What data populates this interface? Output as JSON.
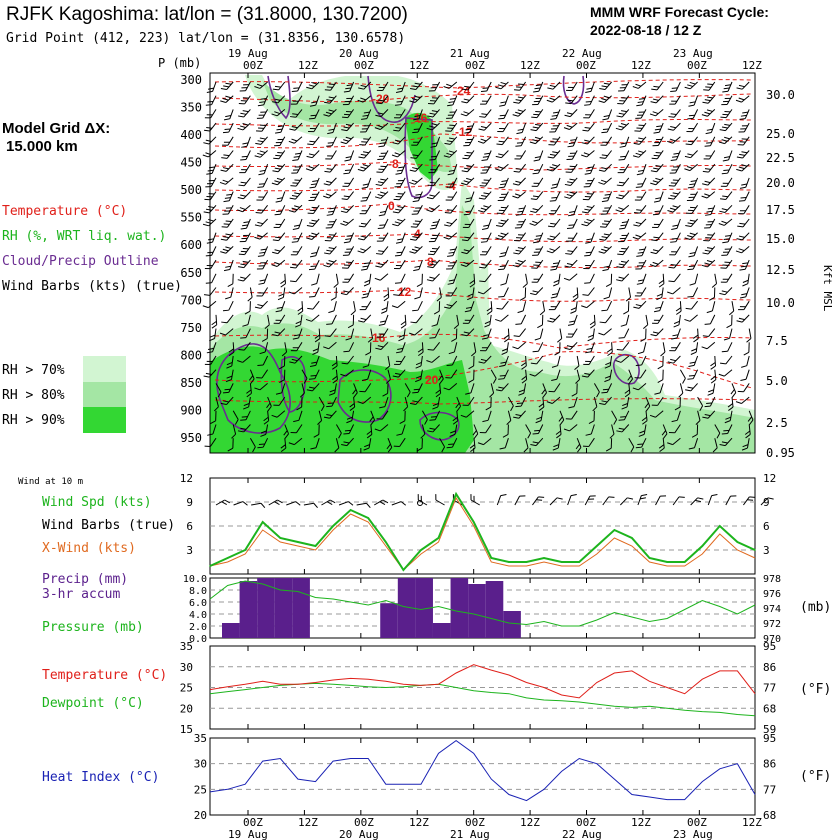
{
  "header": {
    "title": "RJFK Kagoshima:  lat/lon = (31.8000, 130.7200)",
    "subtitle": "Grid Point (412, 223) lat/lon = (31.8356, 130.6578)",
    "cycle_label": "MMM WRF Forecast Cycle:",
    "cycle_value": "2022-08-18 / 12  Z"
  },
  "left_panel": {
    "grid_label": "Model Grid ΔX:",
    "grid_value": "15.000 km",
    "legend": [
      {
        "text": "Temperature (°C)",
        "color": "#e0201a"
      },
      {
        "text": "RH (%, WRT liq. wat.)",
        "color": "#1db41d"
      },
      {
        "text": "Cloud/Precip Outline",
        "color": "#6a2c91"
      },
      {
        "text": "Wind Barbs (kts) (true)",
        "color": "#000000"
      }
    ],
    "rh_legend": [
      {
        "text": "RH > 70%",
        "color": "#d2f5d2"
      },
      {
        "text": "RH > 80%",
        "color": "#a4e6a4"
      },
      {
        "text": "RH > 90%",
        "color": "#33d733"
      }
    ]
  },
  "time_axis": {
    "day_labels": [
      "19 Aug",
      "20 Aug",
      "21 Aug",
      "22 Aug",
      "23 Aug"
    ],
    "hour_labels": [
      "00Z",
      "12Z",
      "00Z",
      "12Z",
      "00Z",
      "12Z",
      "00Z",
      "12Z",
      "00Z",
      "12Z"
    ]
  },
  "chart_data": [
    {
      "type": "heatmap",
      "name": "Vertical cross-section (time-height)",
      "ylabel": "P (mb)",
      "right_label": "Kft MSL",
      "pressure_levels": [
        300,
        350,
        400,
        450,
        500,
        550,
        600,
        650,
        700,
        750,
        800,
        850,
        900,
        950
      ],
      "height_labels": [
        "30.0",
        "25.0",
        "22.5",
        "20.0",
        "17.5",
        "15.0",
        "12.5",
        "10.0",
        "7.5",
        "5.0",
        "2.5",
        "0.95"
      ],
      "temperature_contour_labels": [
        "-24",
        "-20",
        "-16",
        "-12",
        "-8",
        "-4",
        "0",
        "4",
        "8",
        "12",
        "16",
        "20"
      ],
      "rh_classes": [
        "> 70%",
        "> 80%",
        "> 90%"
      ]
    },
    {
      "type": "line",
      "name": "Surface wind",
      "header_note": "Wind at 10 m",
      "series": [
        {
          "name": "Wind Spd (kts)",
          "color": "#1db41d",
          "values": [
            1,
            2,
            3,
            6.5,
            4.5,
            4,
            3.5,
            6,
            8,
            7,
            4,
            0.5,
            3,
            4.5,
            10,
            6.5,
            2,
            1.5,
            1.5,
            2,
            1.5,
            1.5,
            3.5,
            5.5,
            4.5,
            2,
            1.5,
            1.5,
            3.5,
            6,
            4,
            3
          ]
        },
        {
          "name": "X-Wind (kts)",
          "color": "#e06a20",
          "values": [
            1,
            1.5,
            2.5,
            5.5,
            4,
            3.5,
            3,
            5.5,
            7.5,
            6.5,
            3.5,
            0.5,
            2.5,
            4,
            9.5,
            6,
            1.5,
            1,
            1,
            1.5,
            1,
            1,
            2.5,
            4.5,
            3.5,
            1.5,
            1,
            1,
            2.5,
            5,
            3,
            2
          ]
        }
      ],
      "wind_barbs_label": "Wind Barbs (true)",
      "y_ticks": [
        "12",
        "9",
        "6",
        "3"
      ],
      "ylim": [
        0,
        12
      ]
    },
    {
      "type": "bar",
      "name": "Precipitation & pressure",
      "series": [
        {
          "name": "Precip (mm) 3-hr accum",
          "color": "#5a1f8c",
          "values": [
            2.5,
            9.5,
            10,
            10,
            10,
            0,
            0,
            0,
            0,
            5.8,
            10,
            10,
            2.5,
            10,
            9,
            9.5,
            4.5,
            0,
            0,
            0,
            0,
            0,
            0,
            0,
            0,
            0,
            0,
            0,
            0,
            0,
            0,
            0
          ]
        },
        {
          "name": "Pressure (mb)",
          "color": "#1db41d",
          "values": [
            975.2,
            977,
            977.6,
            977.2,
            976.4,
            976.2,
            975.4,
            975.2,
            974.8,
            974.4,
            975,
            974.2,
            973.8,
            974.2,
            973.6,
            973.2,
            972.6,
            972,
            971.8,
            972.2,
            971.6,
            971.6,
            972.4,
            973.4,
            972.8,
            972.2,
            972.6,
            973.8,
            975,
            974.2,
            973.2,
            974.4
          ]
        }
      ],
      "precip_ticks": [
        "10.0",
        "8.0",
        "6.0",
        "4.0",
        "2.0",
        "0.0"
      ],
      "pressure_ticks": [
        "978",
        "976",
        "974",
        "972",
        "970"
      ],
      "pressure_unit": "(mb)",
      "precip_ylim": [
        0,
        10
      ],
      "pressure_ylim": [
        970,
        978
      ]
    },
    {
      "type": "line",
      "name": "Temperature & dewpoint",
      "series": [
        {
          "name": "Temperature (°C)",
          "color": "#e0201a",
          "values": [
            24.5,
            25.2,
            25.8,
            26.5,
            25.8,
            25.8,
            26.2,
            26.8,
            27.2,
            27,
            26.5,
            25.8,
            25.5,
            25.8,
            28.5,
            30.5,
            29.2,
            28,
            26.2,
            25,
            23.2,
            22.5,
            26.2,
            28.5,
            29,
            26.5,
            25,
            23.5,
            27,
            29,
            29,
            23.5
          ]
        },
        {
          "name": "Dewpoint (°C)",
          "color": "#1db41d",
          "values": [
            23.5,
            24,
            24.5,
            25,
            25.5,
            25.8,
            26,
            25.8,
            25.5,
            25.2,
            25,
            25.2,
            25.5,
            25.8,
            25,
            24.2,
            23.8,
            23.5,
            22.5,
            22,
            21.8,
            21.5,
            21,
            20.5,
            20.2,
            20.5,
            20,
            19.5,
            19.2,
            19,
            18.5,
            18.2
          ]
        }
      ],
      "c_ticks": [
        "35",
        "30",
        "25",
        "20",
        "15"
      ],
      "f_ticks": [
        "95",
        "86",
        "77",
        "68",
        "59"
      ],
      "f_unit": "(°F)",
      "ylim": [
        15,
        35
      ]
    },
    {
      "type": "line",
      "name": "Heat index",
      "series": [
        {
          "name": "Heat Index (°C)",
          "color": "#1a22b4",
          "values": [
            24.5,
            25,
            26,
            30.5,
            31,
            27,
            26.5,
            30.5,
            31,
            31,
            26,
            26,
            26,
            32,
            34.5,
            32,
            27,
            24,
            22.8,
            25,
            28.5,
            31,
            30,
            27,
            24,
            23.5,
            23,
            23,
            26.5,
            29,
            30,
            24
          ]
        }
      ],
      "c_ticks": [
        "35",
        "30",
        "25",
        "20"
      ],
      "f_ticks": [
        "95",
        "86",
        "77",
        "68"
      ],
      "f_unit": "(°F)",
      "ylim": [
        20,
        35
      ]
    }
  ]
}
